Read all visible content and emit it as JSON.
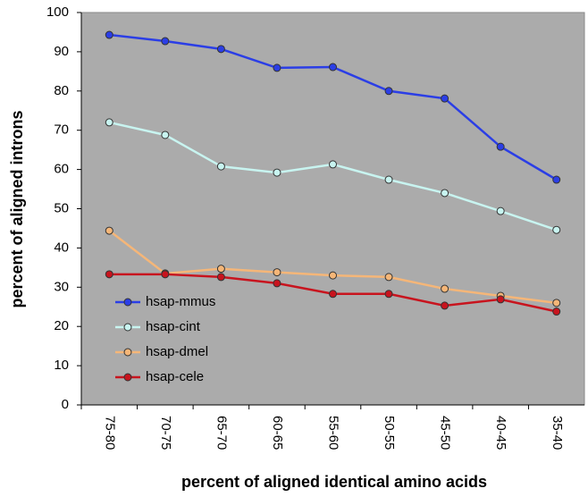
{
  "chart_data": {
    "type": "line",
    "xlabel": "percent of aligned identical amino acids",
    "ylabel": "percent of aligned introns",
    "categories": [
      "75-80",
      "70-75",
      "65-70",
      "60-65",
      "55-60",
      "50-55",
      "45-50",
      "40-45",
      "35-40"
    ],
    "series": [
      {
        "name": "hsap-mmus",
        "color": "#2b3ee6",
        "values": [
          94.3,
          92.7,
          90.7,
          85.9,
          86.1,
          80,
          78.1,
          65.8,
          57.4
        ]
      },
      {
        "name": "hsap-cint",
        "color": "#c8f4f0",
        "values": [
          72,
          68.8,
          60.8,
          59.2,
          61.3,
          57.4,
          54,
          49.4,
          44.6
        ]
      },
      {
        "name": "hsap-dmel",
        "color": "#f5b678",
        "values": [
          44.4,
          33.5,
          34.7,
          33.8,
          33,
          32.6,
          29.6,
          27.8,
          26
        ]
      },
      {
        "name": "hsap-cele",
        "color": "#c8141e",
        "values": [
          33.3,
          33.3,
          32.6,
          31,
          28.3,
          28.3,
          25.3,
          26.9,
          23.8
        ]
      }
    ],
    "ylim": [
      0,
      100
    ],
    "yticks": [
      0,
      10,
      20,
      30,
      40,
      50,
      60,
      70,
      80,
      90,
      100
    ],
    "legend": "lower left",
    "background": "#ababab"
  }
}
